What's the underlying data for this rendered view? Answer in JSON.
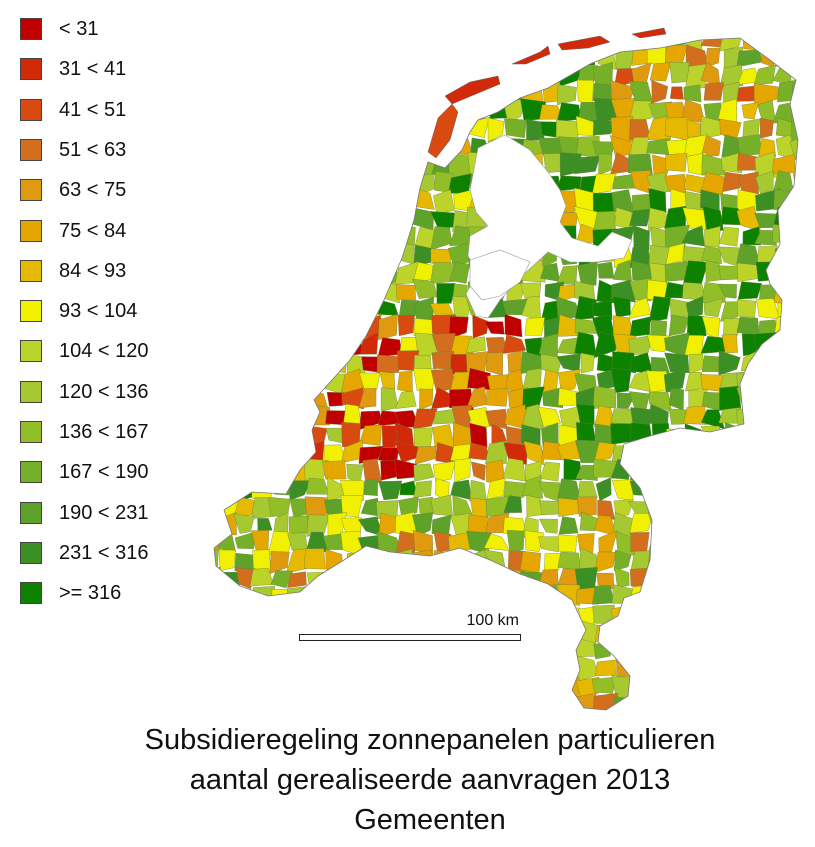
{
  "legend": {
    "items": [
      {
        "label": "< 31",
        "color": "#c00000"
      },
      {
        "label": "31 < 41",
        "color": "#d22a08"
      },
      {
        "label": "41 < 51",
        "color": "#d84a10"
      },
      {
        "label": "51 < 63",
        "color": "#d26e1e"
      },
      {
        "label": "63 < 75",
        "color": "#e09a10"
      },
      {
        "label": "75 < 84",
        "color": "#e6a600"
      },
      {
        "label": "84 < 93",
        "color": "#e6b800"
      },
      {
        "label": "93 < 104",
        "color": "#f0f000"
      },
      {
        "label": "104 < 120",
        "color": "#bcd42a"
      },
      {
        "label": "120 < 136",
        "color": "#a6c830"
      },
      {
        "label": "136 < 167",
        "color": "#92be28"
      },
      {
        "label": "167 < 190",
        "color": "#76b028"
      },
      {
        "label": "190 < 231",
        "color": "#5ea22a"
      },
      {
        "label": "231 < 316",
        "color": "#3c8f24"
      },
      {
        "label": ">= 316",
        "color": "#0c8200"
      }
    ]
  },
  "scale": {
    "label": "100 km"
  },
  "caption": {
    "line1": "Subsidieregeling zonnepanelen particulieren",
    "line2": "aantal gerealiseerde aanvragen 2013",
    "line3": "Gemeenten"
  }
}
